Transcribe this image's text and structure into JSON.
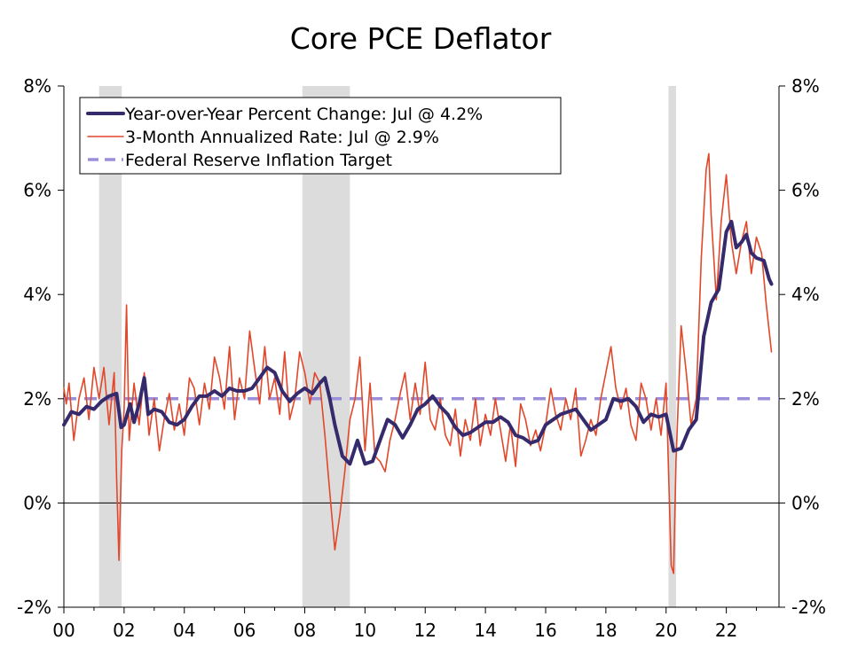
{
  "chart_data": {
    "type": "line",
    "title": "Core PCE Deflator",
    "xlabel": "",
    "ylabel": "",
    "xlim": [
      2000.0,
      2023.75
    ],
    "ylim": [
      -2,
      8
    ],
    "y_ticks": [
      -2,
      0,
      2,
      4,
      6,
      8
    ],
    "y_tick_labels": [
      "-2%",
      "0%",
      "2%",
      "4%",
      "6%",
      "8%"
    ],
    "x_ticks": [
      2000,
      2002,
      2004,
      2006,
      2008,
      2010,
      2012,
      2014,
      2016,
      2018,
      2020,
      2022
    ],
    "x_tick_labels": [
      "00",
      "02",
      "04",
      "06",
      "08",
      "10",
      "12",
      "14",
      "16",
      "18",
      "20",
      "22"
    ],
    "grid": false,
    "legend_position": "top-left",
    "recessions": [
      {
        "start": 2001.17,
        "end": 2001.92
      },
      {
        "start": 2007.92,
        "end": 2009.5
      },
      {
        "start": 2020.08,
        "end": 2020.33
      }
    ],
    "colors": {
      "yoy": "#352a6b",
      "three_month": "#e2472a",
      "target": "#9b8fdc",
      "recession": "#dcdcdc"
    },
    "series": [
      {
        "name": "Year-over-Year Percent Change: Jul @ 4.2%",
        "style": "thick",
        "points": [
          [
            2000.0,
            1.5
          ],
          [
            2000.25,
            1.75
          ],
          [
            2000.5,
            1.7
          ],
          [
            2000.75,
            1.85
          ],
          [
            2001.0,
            1.8
          ],
          [
            2001.25,
            1.95
          ],
          [
            2001.5,
            2.05
          ],
          [
            2001.75,
            2.1
          ],
          [
            2001.9,
            1.45
          ],
          [
            2002.0,
            1.5
          ],
          [
            2002.2,
            1.9
          ],
          [
            2002.33,
            1.55
          ],
          [
            2002.5,
            1.9
          ],
          [
            2002.67,
            2.4
          ],
          [
            2002.8,
            1.7
          ],
          [
            2003.0,
            1.8
          ],
          [
            2003.25,
            1.75
          ],
          [
            2003.5,
            1.55
          ],
          [
            2003.75,
            1.5
          ],
          [
            2004.0,
            1.6
          ],
          [
            2004.25,
            1.85
          ],
          [
            2004.5,
            2.05
          ],
          [
            2004.75,
            2.05
          ],
          [
            2005.0,
            2.15
          ],
          [
            2005.25,
            2.05
          ],
          [
            2005.5,
            2.2
          ],
          [
            2005.75,
            2.15
          ],
          [
            2006.0,
            2.15
          ],
          [
            2006.25,
            2.2
          ],
          [
            2006.5,
            2.4
          ],
          [
            2006.75,
            2.6
          ],
          [
            2007.0,
            2.5
          ],
          [
            2007.25,
            2.15
          ],
          [
            2007.5,
            1.95
          ],
          [
            2007.75,
            2.1
          ],
          [
            2008.0,
            2.2
          ],
          [
            2008.25,
            2.1
          ],
          [
            2008.5,
            2.3
          ],
          [
            2008.67,
            2.4
          ],
          [
            2008.83,
            2.0
          ],
          [
            2009.0,
            1.5
          ],
          [
            2009.25,
            0.9
          ],
          [
            2009.5,
            0.75
          ],
          [
            2009.75,
            1.2
          ],
          [
            2010.0,
            0.75
          ],
          [
            2010.25,
            0.8
          ],
          [
            2010.5,
            1.2
          ],
          [
            2010.75,
            1.6
          ],
          [
            2011.0,
            1.5
          ],
          [
            2011.25,
            1.25
          ],
          [
            2011.5,
            1.5
          ],
          [
            2011.75,
            1.8
          ],
          [
            2012.0,
            1.9
          ],
          [
            2012.25,
            2.05
          ],
          [
            2012.5,
            1.85
          ],
          [
            2012.75,
            1.7
          ],
          [
            2013.0,
            1.45
          ],
          [
            2013.25,
            1.3
          ],
          [
            2013.5,
            1.35
          ],
          [
            2013.75,
            1.45
          ],
          [
            2014.0,
            1.55
          ],
          [
            2014.25,
            1.55
          ],
          [
            2014.5,
            1.65
          ],
          [
            2014.75,
            1.55
          ],
          [
            2015.0,
            1.3
          ],
          [
            2015.25,
            1.25
          ],
          [
            2015.5,
            1.15
          ],
          [
            2015.75,
            1.2
          ],
          [
            2016.0,
            1.5
          ],
          [
            2016.25,
            1.6
          ],
          [
            2016.5,
            1.7
          ],
          [
            2016.75,
            1.75
          ],
          [
            2017.0,
            1.8
          ],
          [
            2017.25,
            1.6
          ],
          [
            2017.5,
            1.4
          ],
          [
            2017.75,
            1.5
          ],
          [
            2018.0,
            1.6
          ],
          [
            2018.25,
            2.0
          ],
          [
            2018.5,
            1.95
          ],
          [
            2018.75,
            2.0
          ],
          [
            2019.0,
            1.85
          ],
          [
            2019.25,
            1.55
          ],
          [
            2019.5,
            1.7
          ],
          [
            2019.75,
            1.65
          ],
          [
            2020.0,
            1.7
          ],
          [
            2020.25,
            1.0
          ],
          [
            2020.5,
            1.05
          ],
          [
            2020.75,
            1.4
          ],
          [
            2021.0,
            1.6
          ],
          [
            2021.25,
            3.2
          ],
          [
            2021.5,
            3.85
          ],
          [
            2021.75,
            4.1
          ],
          [
            2022.0,
            5.2
          ],
          [
            2022.17,
            5.4
          ],
          [
            2022.33,
            4.9
          ],
          [
            2022.5,
            5.0
          ],
          [
            2022.67,
            5.15
          ],
          [
            2022.83,
            4.8
          ],
          [
            2023.0,
            4.7
          ],
          [
            2023.25,
            4.65
          ],
          [
            2023.42,
            4.3
          ],
          [
            2023.5,
            4.2
          ]
        ]
      },
      {
        "name": "3-Month Annualized Rate: Jul @ 2.9%",
        "style": "thin",
        "points": [
          [
            2000.0,
            2.2
          ],
          [
            2000.08,
            1.9
          ],
          [
            2000.17,
            2.3
          ],
          [
            2000.33,
            1.2
          ],
          [
            2000.5,
            2.0
          ],
          [
            2000.67,
            2.4
          ],
          [
            2000.83,
            1.6
          ],
          [
            2001.0,
            2.6
          ],
          [
            2001.17,
            2.0
          ],
          [
            2001.33,
            2.6
          ],
          [
            2001.5,
            1.5
          ],
          [
            2001.67,
            2.5
          ],
          [
            2001.75,
            0.5
          ],
          [
            2001.83,
            -1.1
          ],
          [
            2001.92,
            1.0
          ],
          [
            2002.0,
            1.8
          ],
          [
            2002.08,
            3.8
          ],
          [
            2002.17,
            1.2
          ],
          [
            2002.33,
            2.3
          ],
          [
            2002.5,
            1.5
          ],
          [
            2002.67,
            2.5
          ],
          [
            2002.83,
            1.3
          ],
          [
            2003.0,
            2.0
          ],
          [
            2003.17,
            1.0
          ],
          [
            2003.33,
            1.6
          ],
          [
            2003.5,
            2.1
          ],
          [
            2003.67,
            1.4
          ],
          [
            2003.83,
            1.9
          ],
          [
            2004.0,
            1.3
          ],
          [
            2004.17,
            2.4
          ],
          [
            2004.33,
            2.2
          ],
          [
            2004.5,
            1.5
          ],
          [
            2004.67,
            2.3
          ],
          [
            2004.83,
            1.8
          ],
          [
            2005.0,
            2.8
          ],
          [
            2005.17,
            2.4
          ],
          [
            2005.33,
            1.8
          ],
          [
            2005.5,
            3.0
          ],
          [
            2005.67,
            1.6
          ],
          [
            2005.83,
            2.4
          ],
          [
            2006.0,
            2.0
          ],
          [
            2006.17,
            3.3
          ],
          [
            2006.33,
            2.6
          ],
          [
            2006.5,
            1.9
          ],
          [
            2006.67,
            3.0
          ],
          [
            2006.83,
            2.0
          ],
          [
            2007.0,
            2.4
          ],
          [
            2007.17,
            1.7
          ],
          [
            2007.33,
            2.9
          ],
          [
            2007.5,
            1.6
          ],
          [
            2007.67,
            2.0
          ],
          [
            2007.83,
            2.9
          ],
          [
            2008.0,
            2.5
          ],
          [
            2008.17,
            1.9
          ],
          [
            2008.33,
            2.5
          ],
          [
            2008.5,
            2.3
          ],
          [
            2008.67,
            1.3
          ],
          [
            2008.83,
            0.2
          ],
          [
            2009.0,
            -0.9
          ],
          [
            2009.17,
            -0.2
          ],
          [
            2009.33,
            0.6
          ],
          [
            2009.5,
            1.6
          ],
          [
            2009.67,
            2.0
          ],
          [
            2009.83,
            2.8
          ],
          [
            2010.0,
            1.0
          ],
          [
            2010.17,
            2.3
          ],
          [
            2010.33,
            0.9
          ],
          [
            2010.5,
            0.8
          ],
          [
            2010.67,
            0.6
          ],
          [
            2010.83,
            1.2
          ],
          [
            2011.0,
            1.6
          ],
          [
            2011.17,
            2.1
          ],
          [
            2011.33,
            2.5
          ],
          [
            2011.5,
            1.6
          ],
          [
            2011.67,
            2.3
          ],
          [
            2011.83,
            1.7
          ],
          [
            2012.0,
            2.7
          ],
          [
            2012.17,
            1.6
          ],
          [
            2012.33,
            1.4
          ],
          [
            2012.5,
            2.0
          ],
          [
            2012.67,
            1.3
          ],
          [
            2012.83,
            1.1
          ],
          [
            2013.0,
            1.8
          ],
          [
            2013.17,
            0.9
          ],
          [
            2013.33,
            1.6
          ],
          [
            2013.5,
            1.2
          ],
          [
            2013.67,
            2.0
          ],
          [
            2013.83,
            1.1
          ],
          [
            2014.0,
            1.7
          ],
          [
            2014.17,
            1.3
          ],
          [
            2014.33,
            2.0
          ],
          [
            2014.5,
            1.4
          ],
          [
            2014.67,
            0.8
          ],
          [
            2014.83,
            1.5
          ],
          [
            2015.0,
            0.7
          ],
          [
            2015.17,
            1.9
          ],
          [
            2015.33,
            1.6
          ],
          [
            2015.5,
            1.1
          ],
          [
            2015.67,
            1.4
          ],
          [
            2015.83,
            1.0
          ],
          [
            2016.0,
            1.5
          ],
          [
            2016.17,
            2.2
          ],
          [
            2016.33,
            1.7
          ],
          [
            2016.5,
            1.4
          ],
          [
            2016.67,
            2.0
          ],
          [
            2016.83,
            1.6
          ],
          [
            2017.0,
            2.2
          ],
          [
            2017.17,
            0.9
          ],
          [
            2017.33,
            1.2
          ],
          [
            2017.5,
            1.6
          ],
          [
            2017.67,
            1.3
          ],
          [
            2017.83,
            2.0
          ],
          [
            2018.0,
            2.5
          ],
          [
            2018.17,
            3.0
          ],
          [
            2018.33,
            2.2
          ],
          [
            2018.5,
            1.8
          ],
          [
            2018.67,
            2.2
          ],
          [
            2018.83,
            1.5
          ],
          [
            2019.0,
            1.2
          ],
          [
            2019.17,
            2.3
          ],
          [
            2019.33,
            2.0
          ],
          [
            2019.5,
            1.4
          ],
          [
            2019.67,
            2.0
          ],
          [
            2019.83,
            1.3
          ],
          [
            2020.0,
            2.3
          ],
          [
            2020.17,
            -1.2
          ],
          [
            2020.25,
            -1.35
          ],
          [
            2020.33,
            0.8
          ],
          [
            2020.5,
            3.4
          ],
          [
            2020.67,
            2.5
          ],
          [
            2020.83,
            1.5
          ],
          [
            2021.0,
            2.0
          ],
          [
            2021.17,
            4.7
          ],
          [
            2021.33,
            6.4
          ],
          [
            2021.42,
            6.7
          ],
          [
            2021.5,
            5.5
          ],
          [
            2021.67,
            3.9
          ],
          [
            2021.83,
            5.4
          ],
          [
            2022.0,
            6.3
          ],
          [
            2022.17,
            5.0
          ],
          [
            2022.33,
            4.4
          ],
          [
            2022.5,
            5.0
          ],
          [
            2022.67,
            5.4
          ],
          [
            2022.83,
            4.4
          ],
          [
            2023.0,
            5.1
          ],
          [
            2023.17,
            4.8
          ],
          [
            2023.33,
            3.8
          ],
          [
            2023.5,
            2.9
          ]
        ]
      },
      {
        "name": "Federal Reserve Inflation Target",
        "style": "dashed",
        "points": [
          [
            2000.0,
            2.0
          ],
          [
            2023.75,
            2.0
          ]
        ]
      }
    ]
  }
}
